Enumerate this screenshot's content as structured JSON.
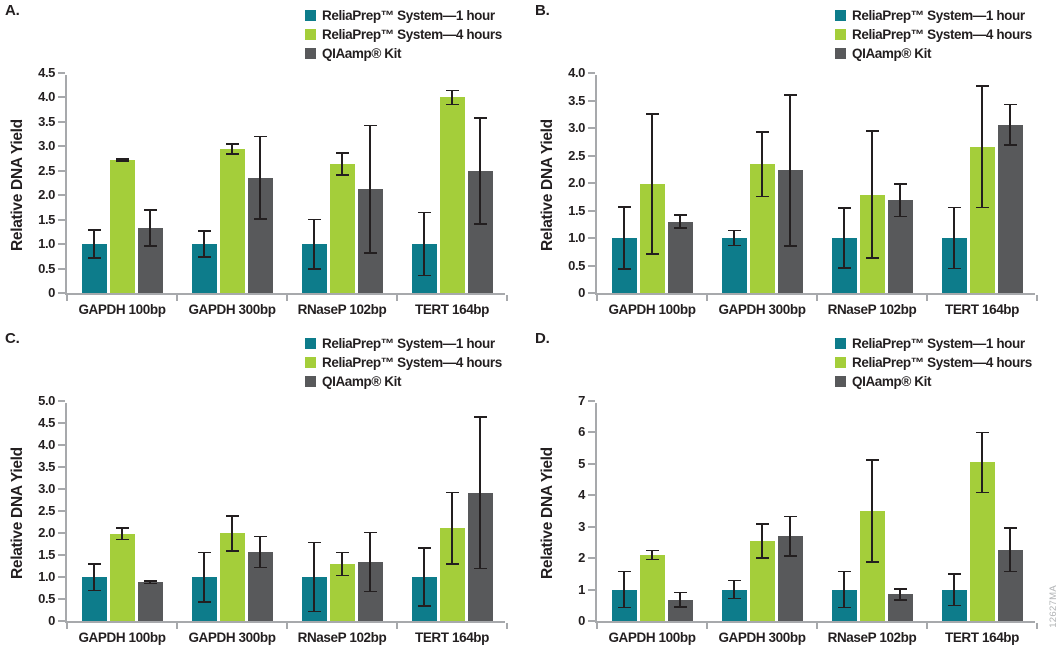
{
  "figure_code": "12627MA",
  "colors": {
    "series1": "#0d7c8b",
    "series2": "#a4ce3a",
    "series3": "#58595b",
    "axis": "#a7a9ac",
    "error_bar": "#231f20",
    "text": "#231f20",
    "figcode_text": "#b2b4b6"
  },
  "legend": {
    "position": "top-right",
    "items": [
      {
        "label": "ReliaPrep™ System—1 hour",
        "color": "#0d7c8b"
      },
      {
        "label": "ReliaPrep™ System—4 hours",
        "color": "#a4ce3a"
      },
      {
        "label": "QIAamp® Kit",
        "color": "#58595b"
      }
    ]
  },
  "chart_data": [
    {
      "panel": "A.",
      "type": "bar",
      "title": "",
      "xlabel": "",
      "ylabel": "Relative DNA Yield",
      "ylim": [
        0,
        4.5
      ],
      "ytick_step": 0.5,
      "ytick_decimals": 1,
      "grid": false,
      "categories": [
        "GAPDH 100bp",
        "GAPDH 300bp",
        "RNaseP 102bp",
        "TERT 164bp"
      ],
      "series": [
        {
          "name": "ReliaPrep™ System—1 hour",
          "values": [
            1.0,
            1.0,
            1.0,
            1.0
          ],
          "errors": [
            0.3,
            0.28,
            0.52,
            0.66
          ]
        },
        {
          "name": "ReliaPrep™ System—4 hours",
          "values": [
            2.72,
            2.95,
            2.64,
            4.0
          ],
          "errors": [
            0.04,
            0.12,
            0.24,
            0.16
          ]
        },
        {
          "name": "QIAamp® Kit",
          "values": [
            1.33,
            2.36,
            2.12,
            2.5
          ],
          "errors": [
            0.38,
            0.86,
            1.32,
            1.1
          ]
        }
      ]
    },
    {
      "panel": "B.",
      "type": "bar",
      "title": "",
      "xlabel": "",
      "ylabel": "Relative DNA Yield",
      "ylim": [
        0,
        4.0
      ],
      "ytick_step": 0.5,
      "ytick_decimals": 1,
      "grid": false,
      "categories": [
        "GAPDH 100bp",
        "GAPDH 300bp",
        "RNaseP 102bp",
        "TERT 164bp"
      ],
      "series": [
        {
          "name": "ReliaPrep™ System—1 hour",
          "values": [
            1.0,
            1.0,
            1.0,
            1.0
          ],
          "errors": [
            0.58,
            0.15,
            0.56,
            0.57
          ]
        },
        {
          "name": "ReliaPrep™ System—4 hours",
          "values": [
            1.98,
            2.34,
            1.79,
            2.66
          ],
          "errors": [
            1.29,
            0.6,
            1.17,
            1.12
          ]
        },
        {
          "name": "QIAamp® Kit",
          "values": [
            1.3,
            2.23,
            1.69,
            3.06
          ],
          "errors": [
            0.13,
            1.39,
            0.31,
            0.38
          ]
        }
      ]
    },
    {
      "panel": "C.",
      "type": "bar",
      "title": "",
      "xlabel": "",
      "ylabel": "Relative DNA Yield",
      "ylim": [
        0,
        5.0
      ],
      "ytick_step": 0.5,
      "ytick_decimals": 1,
      "grid": false,
      "categories": [
        "GAPDH 100bp",
        "GAPDH 300bp",
        "RNaseP 102bp",
        "TERT 164bp"
      ],
      "series": [
        {
          "name": "ReliaPrep™ System—1 hour",
          "values": [
            1.0,
            1.0,
            1.0,
            1.0
          ],
          "errors": [
            0.32,
            0.58,
            0.8,
            0.68
          ]
        },
        {
          "name": "ReliaPrep™ System—4 hours",
          "values": [
            1.98,
            1.99,
            1.3,
            2.11
          ],
          "errors": [
            0.15,
            0.42,
            0.28,
            0.83
          ]
        },
        {
          "name": "QIAamp® Kit",
          "values": [
            0.88,
            1.57,
            1.34,
            2.92
          ],
          "errors": [
            0.05,
            0.37,
            0.69,
            1.74
          ]
        }
      ]
    },
    {
      "panel": "D.",
      "type": "bar",
      "title": "",
      "xlabel": "",
      "ylabel": "Relative DNA Yield",
      "ylim": [
        0,
        7
      ],
      "ytick_step": 1,
      "ytick_decimals": 0,
      "grid": false,
      "categories": [
        "GAPDH 100bp",
        "GAPDH 300bp",
        "RNaseP 102bp",
        "TERT 164bp"
      ],
      "series": [
        {
          "name": "ReliaPrep™ System—1 hour",
          "values": [
            1.0,
            1.0,
            1.0,
            1.0
          ],
          "errors": [
            0.6,
            0.31,
            0.6,
            0.53
          ]
        },
        {
          "name": "ReliaPrep™ System—4 hours",
          "values": [
            2.1,
            2.55,
            3.5,
            5.05
          ],
          "errors": [
            0.17,
            0.57,
            1.65,
            0.98
          ]
        },
        {
          "name": "QIAamp® Kit",
          "values": [
            0.68,
            2.7,
            0.85,
            2.27
          ],
          "errors": [
            0.25,
            0.65,
            0.2,
            0.72
          ]
        }
      ]
    }
  ]
}
